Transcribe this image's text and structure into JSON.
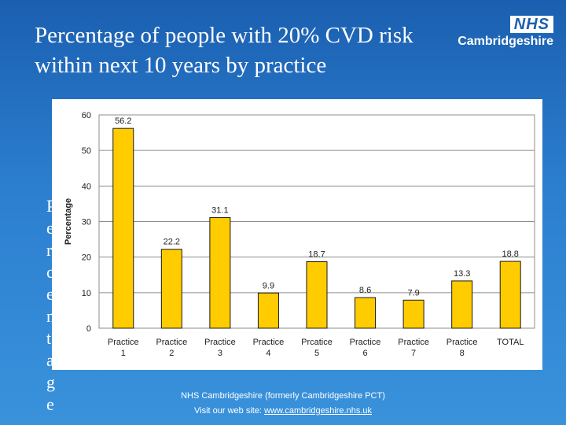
{
  "slide": {
    "title": "Percentage of people with 20% CVD risk within next 10 years by practice",
    "side_text": "Percentage",
    "logo": {
      "badge": "NHS",
      "name": "Cambridgeshire"
    },
    "footer": {
      "line1": "NHS Cambridgeshire (formerly Cambridgeshire PCT)",
      "line2_prefix": "Visit our web site:",
      "url": "www.cambridgeshire.nhs.uk"
    }
  },
  "colors": {
    "bar": "#FFCC00",
    "bar_stroke": "#1a1a1a",
    "plot_bg": "#FFFFFF",
    "grid": "#8C8C8C"
  },
  "chart_data": {
    "type": "bar",
    "title": "",
    "xlabel": "",
    "ylabel": "Percentage",
    "ylim": [
      0,
      60
    ],
    "yticks": [
      0,
      10,
      20,
      30,
      40,
      50,
      60
    ],
    "grid": true,
    "categories": [
      [
        "Practice",
        "1"
      ],
      [
        "Practice",
        "2"
      ],
      [
        "Practice",
        "3"
      ],
      [
        "Practice",
        "4"
      ],
      [
        "Prcatice",
        "5"
      ],
      [
        "Practice",
        "6"
      ],
      [
        "Practice",
        "7"
      ],
      [
        "Practice",
        "8"
      ],
      [
        "TOTAL",
        ""
      ]
    ],
    "values": [
      56.2,
      22.2,
      31.1,
      9.9,
      18.7,
      8.6,
      7.9,
      13.3,
      18.8
    ],
    "data_labels": [
      "56.2",
      "22.2",
      "31.1",
      "9.9",
      "18.7",
      "8.6",
      "7.9",
      "13.3",
      "18.8"
    ]
  }
}
